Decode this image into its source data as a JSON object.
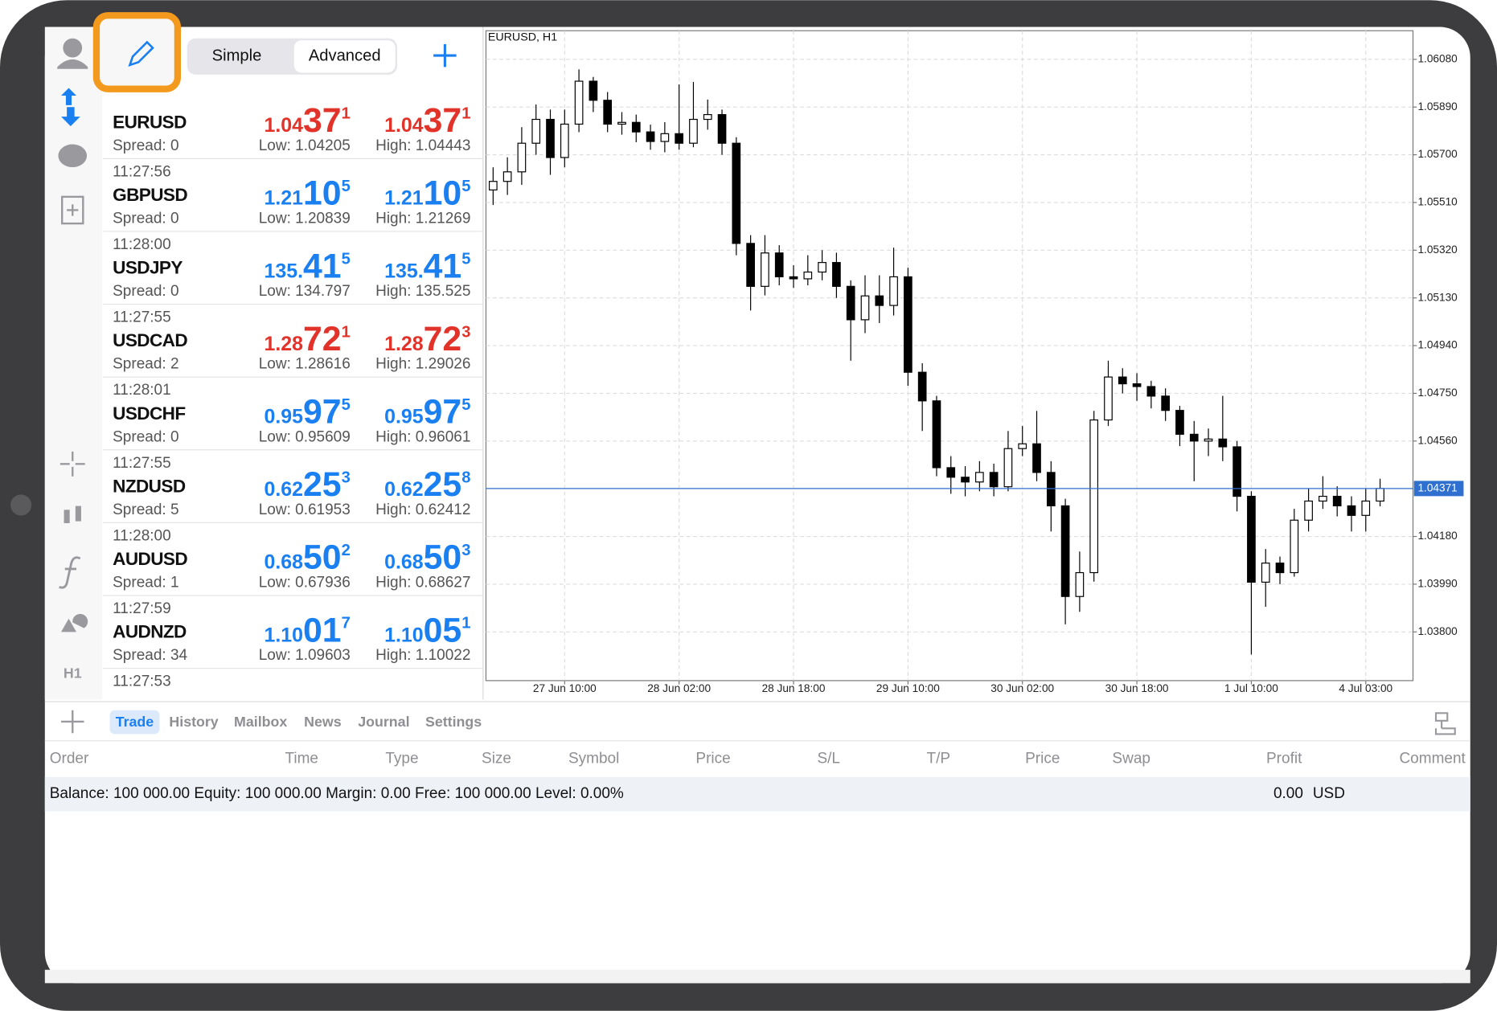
{
  "toolbar": {
    "mode_tabs": [
      "Simple",
      "Advanced"
    ],
    "active_mode": 1
  },
  "sidebar": {
    "timeframe": "H1"
  },
  "quotes": [
    {
      "symbol": "EURUSD",
      "spread": "Spread: 0",
      "color": "#e2332b",
      "bid": [
        "1.04",
        "37",
        "1"
      ],
      "ask": [
        "1.04",
        "37",
        "1"
      ],
      "low": "Low: 1.04205",
      "high": "High: 1.04443"
    },
    {
      "time": "11:27:56",
      "symbol": "GBPUSD",
      "spread": "Spread: 0",
      "color": "#1a7ff0",
      "bid": [
        "1.21",
        "10",
        "5"
      ],
      "ask": [
        "1.21",
        "10",
        "5"
      ],
      "low": "Low: 1.20839",
      "high": "High: 1.21269"
    },
    {
      "time": "11:28:00",
      "symbol": "USDJPY",
      "spread": "Spread: 0",
      "color": "#1a7ff0",
      "bid": [
        "135.",
        "41",
        "5"
      ],
      "ask": [
        "135.",
        "41",
        "5"
      ],
      "low": "Low: 134.797",
      "high": "High: 135.525"
    },
    {
      "time": "11:27:55",
      "symbol": "USDCAD",
      "spread": "Spread: 2",
      "color": "#e2332b",
      "bid": [
        "1.28",
        "72",
        "1"
      ],
      "ask": [
        "1.28",
        "72",
        "3"
      ],
      "low": "Low: 1.28616",
      "high": "High: 1.29026"
    },
    {
      "time": "11:28:01",
      "symbol": "USDCHF",
      "spread": "Spread: 0",
      "color": "#1a7ff0",
      "bid": [
        "0.95",
        "97",
        "5"
      ],
      "ask": [
        "0.95",
        "97",
        "5"
      ],
      "low": "Low: 0.95609",
      "high": "High: 0.96061"
    },
    {
      "time": "11:27:55",
      "symbol": "NZDUSD",
      "spread": "Spread: 5",
      "color": "#1a7ff0",
      "bid": [
        "0.62",
        "25",
        "3"
      ],
      "ask": [
        "0.62",
        "25",
        "8"
      ],
      "low": "Low: 0.61953",
      "high": "High: 0.62412"
    },
    {
      "time": "11:28:00",
      "symbol": "AUDUSD",
      "spread": "Spread: 1",
      "color": "#1a7ff0",
      "bid": [
        "0.68",
        "50",
        "2"
      ],
      "ask": [
        "0.68",
        "50",
        "3"
      ],
      "low": "Low: 0.67936",
      "high": "High: 0.68627"
    },
    {
      "time": "11:27:59",
      "symbol": "AUDNZD",
      "spread": "Spread: 34",
      "color": "#1a7ff0",
      "bid": [
        "1.10",
        "01",
        "7"
      ],
      "ask": [
        "1.10",
        "05",
        "1"
      ],
      "low": "Low: 1.09603",
      "high": "High: 1.10022"
    }
  ],
  "quotes_next_time": "11:27:53",
  "chart": {
    "type": "candlestick",
    "title": "EURUSD, H1",
    "up_color": "#ffffff",
    "down_color": "#000000",
    "grid": true,
    "xlim": [
      -0.5,
      64.3
    ],
    "ylim": [
      1.03606,
      1.06194
    ],
    "yticks": [
      {
        "value": 1.0608,
        "label": "1.06080"
      },
      {
        "value": 1.0589,
        "label": "1.05890"
      },
      {
        "value": 1.057,
        "label": "1.05700"
      },
      {
        "value": 1.0551,
        "label": "1.05510"
      },
      {
        "value": 1.0532,
        "label": "1.05320"
      },
      {
        "value": 1.0513,
        "label": "1.05130"
      },
      {
        "value": 1.0494,
        "label": "1.04940"
      },
      {
        "value": 1.0475,
        "label": "1.04750"
      },
      {
        "value": 1.0456,
        "label": "1.04560"
      },
      {
        "value": 1.0418,
        "label": "1.04180"
      },
      {
        "value": 1.0399,
        "label": "1.03990"
      },
      {
        "value": 1.038,
        "label": "1.03800"
      }
    ],
    "xticks": [
      {
        "value": 5,
        "label": "27 Jun 10:00"
      },
      {
        "value": 13,
        "label": "28 Jun 02:00"
      },
      {
        "value": 21,
        "label": "28 Jun 18:00"
      },
      {
        "value": 29,
        "label": "29 Jun 10:00"
      },
      {
        "value": 37,
        "label": "30 Jun 02:00"
      },
      {
        "value": 45,
        "label": "30 Jun 18:00"
      },
      {
        "value": 53,
        "label": "1 Jul 10:00"
      },
      {
        "value": 61,
        "label": "4 Jul 03:00"
      }
    ],
    "current_price": 1.04371,
    "current_color": "#2e6fd0",
    "candles": [
      [
        1.0556,
        1.0565,
        1.055,
        1.05594
      ],
      [
        1.05594,
        1.0569,
        1.0554,
        1.05632
      ],
      [
        1.05632,
        1.0581,
        1.0558,
        1.05746
      ],
      [
        1.05746,
        1.059,
        1.057,
        1.05841
      ],
      [
        1.05841,
        1.0588,
        1.0562,
        1.05689
      ],
      [
        1.05689,
        1.0588,
        1.0565,
        1.05822
      ],
      [
        1.05822,
        1.0604,
        1.0579,
        1.05993
      ],
      [
        1.05993,
        1.0601,
        1.0587,
        1.05917
      ],
      [
        1.05917,
        1.0595,
        1.0579,
        1.05822
      ],
      [
        1.05822,
        1.0587,
        1.0578,
        1.05829
      ],
      [
        1.05829,
        1.0586,
        1.0575,
        1.05791
      ],
      [
        1.05791,
        1.0582,
        1.0572,
        1.05753
      ],
      [
        1.05753,
        1.0583,
        1.0571,
        1.05784
      ],
      [
        1.05784,
        1.0598,
        1.0572,
        1.05746
      ],
      [
        1.05746,
        1.0599,
        1.0573,
        1.05841
      ],
      [
        1.05841,
        1.0592,
        1.058,
        1.0586
      ],
      [
        1.0586,
        1.0588,
        1.057,
        1.05746
      ],
      [
        1.05746,
        1.0577,
        1.053,
        1.05347
      ],
      [
        1.05347,
        1.0538,
        1.0508,
        1.05176
      ],
      [
        1.05176,
        1.0538,
        1.0514,
        1.05309
      ],
      [
        1.05309,
        1.0534,
        1.0518,
        1.05214
      ],
      [
        1.05214,
        1.0526,
        1.0517,
        1.05206
      ],
      [
        1.05206,
        1.053,
        1.0518,
        1.05233
      ],
      [
        1.05233,
        1.0532,
        1.052,
        1.05271
      ],
      [
        1.05271,
        1.0531,
        1.0513,
        1.05176
      ],
      [
        1.05176,
        1.052,
        1.0488,
        1.05043
      ],
      [
        1.05043,
        1.0522,
        1.0499,
        1.05138
      ],
      [
        1.05138,
        1.0522,
        1.0503,
        1.051
      ],
      [
        1.051,
        1.0533,
        1.0506,
        1.05214
      ],
      [
        1.05214,
        1.0525,
        1.0478,
        1.04834
      ],
      [
        1.04834,
        1.0487,
        1.046,
        1.0472
      ],
      [
        1.0472,
        1.0474,
        1.0442,
        1.04454
      ],
      [
        1.04454,
        1.045,
        1.0435,
        1.04416
      ],
      [
        1.04416,
        1.0446,
        1.0434,
        1.04397
      ],
      [
        1.04397,
        1.0448,
        1.0436,
        1.04435
      ],
      [
        1.04435,
        1.0447,
        1.0434,
        1.04378
      ],
      [
        1.04378,
        1.046,
        1.0436,
        1.0453
      ],
      [
        1.0453,
        1.0462,
        1.045,
        1.04549
      ],
      [
        1.04549,
        1.0468,
        1.044,
        1.04435
      ],
      [
        1.04435,
        1.0448,
        1.042,
        1.04302
      ],
      [
        1.04302,
        1.0433,
        1.0383,
        1.03941
      ],
      [
        1.03941,
        1.0412,
        1.0388,
        1.04036
      ],
      [
        1.04036,
        1.0468,
        1.04,
        1.04644
      ],
      [
        1.04644,
        1.0488,
        1.0462,
        1.04815
      ],
      [
        1.04815,
        1.0485,
        1.0475,
        1.04788
      ],
      [
        1.04788,
        1.0483,
        1.0472,
        1.04777
      ],
      [
        1.04777,
        1.048,
        1.0469,
        1.04739
      ],
      [
        1.04739,
        1.0477,
        1.0464,
        1.04682
      ],
      [
        1.04682,
        1.047,
        1.0454,
        1.04587
      ],
      [
        1.04587,
        1.0464,
        1.044,
        1.0456
      ],
      [
        1.0456,
        1.0461,
        1.045,
        1.04568
      ],
      [
        1.04568,
        1.0474,
        1.0448,
        1.04537
      ],
      [
        1.04537,
        1.0456,
        1.0428,
        1.0434
      ],
      [
        1.0434,
        1.0436,
        1.0371,
        1.03998
      ],
      [
        1.03998,
        1.0413,
        1.039,
        1.04074
      ],
      [
        1.04074,
        1.041,
        1.0399,
        1.04036
      ],
      [
        1.04036,
        1.0429,
        1.0402,
        1.04245
      ],
      [
        1.04245,
        1.0437,
        1.042,
        1.04321
      ],
      [
        1.04321,
        1.0442,
        1.0429,
        1.0434
      ],
      [
        1.0434,
        1.0438,
        1.0426,
        1.04302
      ],
      [
        1.04302,
        1.0434,
        1.042,
        1.04264
      ],
      [
        1.04264,
        1.0437,
        1.042,
        1.04321
      ],
      [
        1.04321,
        1.0441,
        1.043,
        1.04371
      ]
    ]
  },
  "panel": {
    "tabs": [
      "Trade",
      "History",
      "Mailbox",
      "News",
      "Journal",
      "Settings"
    ],
    "active_tab": 0,
    "columns": [
      "Order",
      "Time",
      "Type",
      "Size",
      "Symbol",
      "Price",
      "S/L",
      "T/P",
      "Price",
      "Swap",
      "Profit",
      "Comment"
    ],
    "balance": "Balance: 100 000.00 Equity: 100 000.00 Margin: 0.00 Free: 100 000.00 Level: 0.00%",
    "profit": "0.00",
    "currency": "USD"
  }
}
